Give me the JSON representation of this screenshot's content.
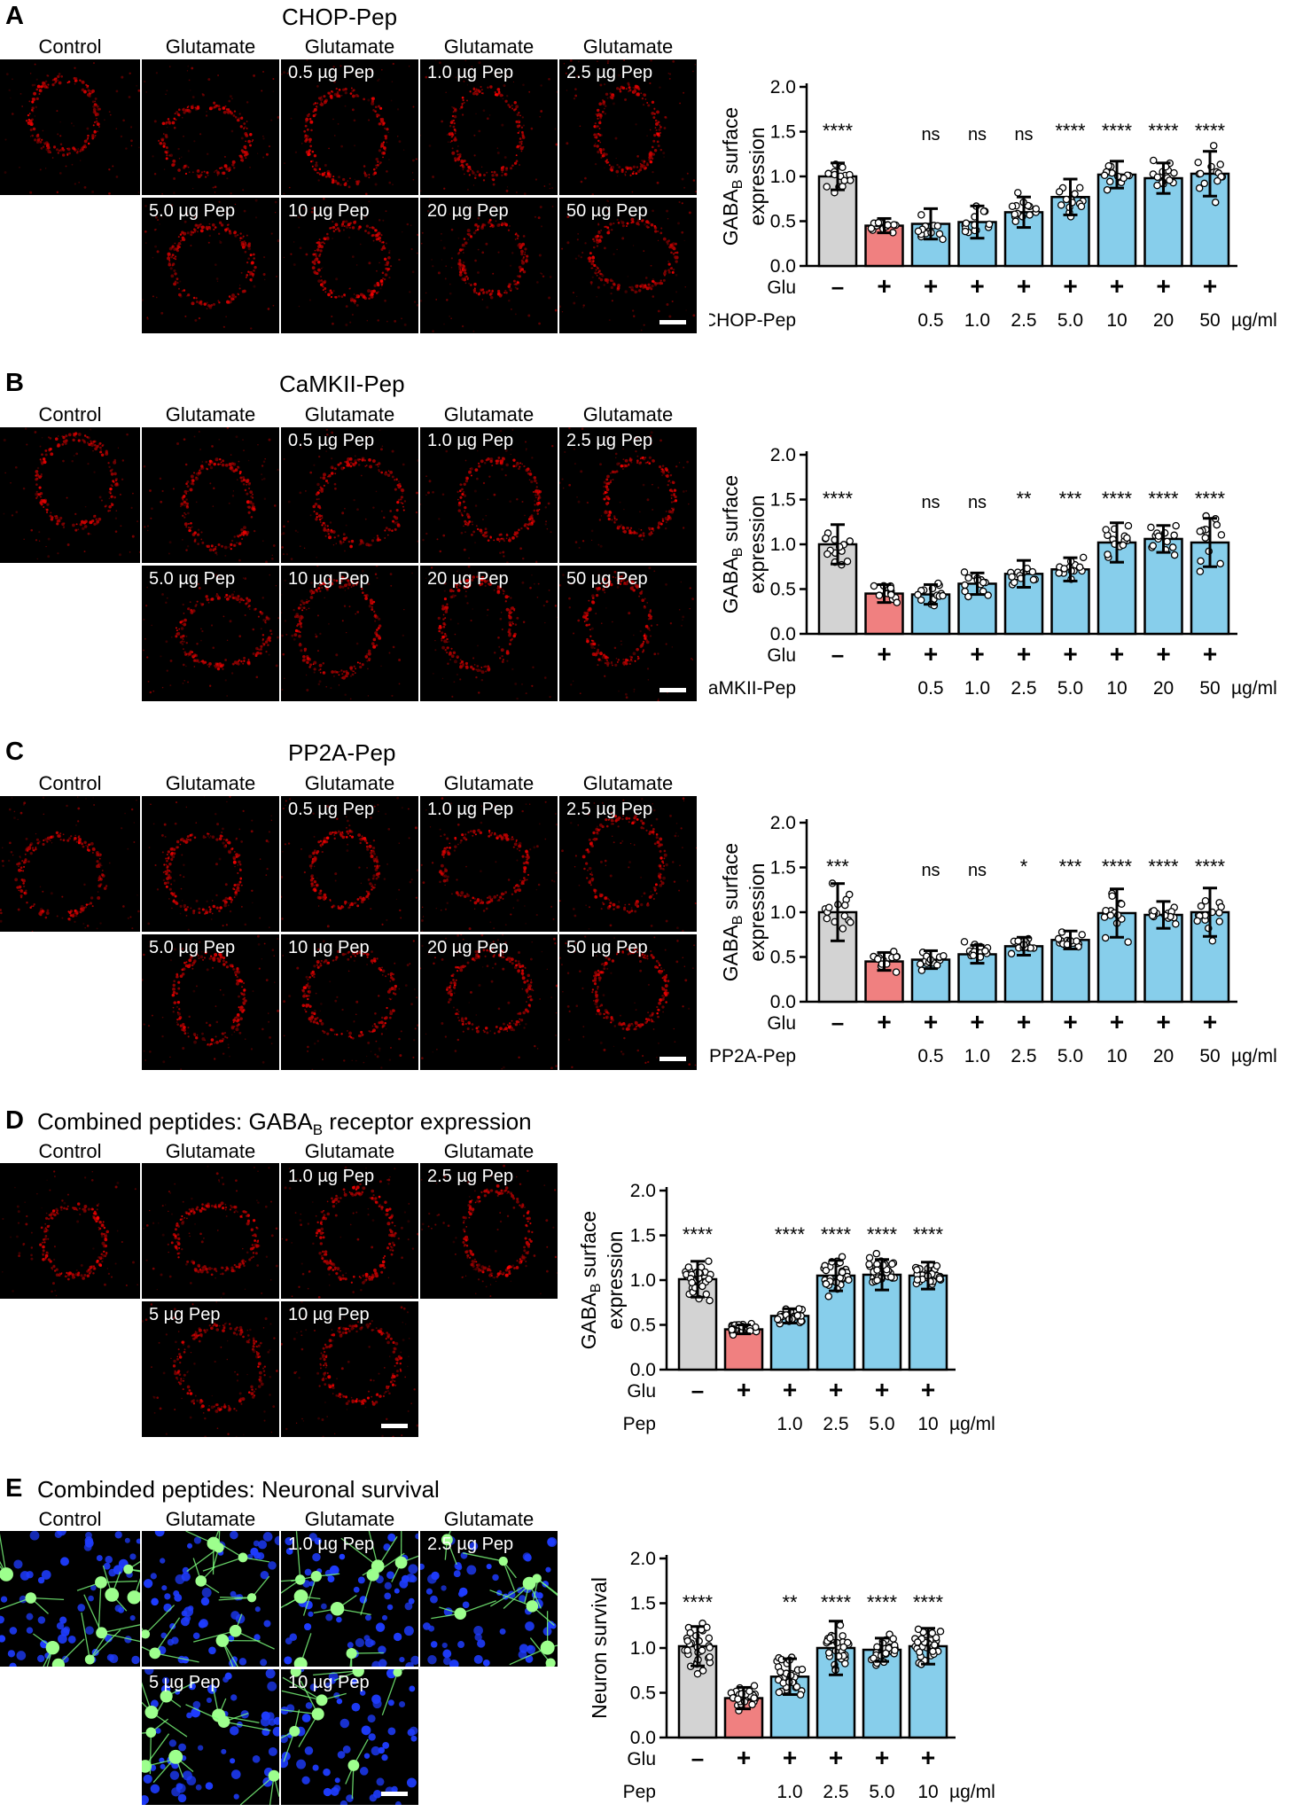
{
  "panels": [
    {
      "letter": "A",
      "title": "CHOP-Pep",
      "chart": {
        "type": "bar",
        "ylabel_line1": "GABABR surface",
        "ylabel_line2": "expression",
        "ylim": [
          0,
          2.0
        ],
        "yticks": [
          "0.0",
          "0.5",
          "1.0",
          "1.5",
          "2.0"
        ],
        "row1_label": "Glu",
        "row2_label": "CHOP-Pep",
        "unit": "µg/ml",
        "glu_signs": [
          "-",
          "+",
          "+",
          "+",
          "+",
          "+",
          "+",
          "+",
          "+"
        ],
        "doses": [
          "",
          "",
          "0.5",
          "1.0",
          "2.5",
          "5.0",
          "10",
          "20",
          "50"
        ],
        "values": [
          1.0,
          0.45,
          0.47,
          0.49,
          0.6,
          0.77,
          1.02,
          0.98,
          1.03
        ],
        "errors": [
          0.15,
          0.08,
          0.17,
          0.18,
          0.17,
          0.2,
          0.15,
          0.17,
          0.25
        ],
        "significance": [
          "****",
          "",
          "ns",
          "ns",
          "ns",
          "****",
          "****",
          "****",
          "****"
        ],
        "bar_colors": [
          "#d3d3d3",
          "#f08080",
          "#87ceeb",
          "#87ceeb",
          "#87ceeb",
          "#87ceeb",
          "#87ceeb",
          "#87ceeb",
          "#87ceeb"
        ]
      },
      "images": {
        "top": [
          {
            "header": "Control",
            "label": ""
          },
          {
            "header": "Glutamate",
            "label": ""
          },
          {
            "header": "Glutamate",
            "label": "0.5 µg Pep"
          },
          {
            "header": "Glutamate",
            "label": "1.0 µg Pep"
          },
          {
            "header": "Glutamate",
            "label": "2.5 µg Pep"
          }
        ],
        "bottom": [
          {
            "label": "5.0 µg Pep"
          },
          {
            "label": "10 µg Pep"
          },
          {
            "label": "20 µg Pep"
          },
          {
            "label": "50 µg Pep"
          }
        ]
      }
    },
    {
      "letter": "B",
      "title": "CaMKII-Pep",
      "chart": {
        "type": "bar",
        "ylabel_line1": "GABABR surface",
        "ylabel_line2": "expression",
        "ylim": [
          0,
          2.0
        ],
        "yticks": [
          "0.0",
          "0.5",
          "1.0",
          "1.5",
          "2.0"
        ],
        "row1_label": "Glu",
        "row2_label": "CaMKII-Pep",
        "unit": "µg/ml",
        "glu_signs": [
          "-",
          "+",
          "+",
          "+",
          "+",
          "+",
          "+",
          "+",
          "+"
        ],
        "doses": [
          "",
          "",
          "0.5",
          "1.0",
          "2.5",
          "5.0",
          "10",
          "20",
          "50"
        ],
        "values": [
          1.0,
          0.45,
          0.44,
          0.56,
          0.67,
          0.72,
          1.02,
          1.06,
          1.02
        ],
        "errors": [
          0.22,
          0.1,
          0.11,
          0.12,
          0.15,
          0.13,
          0.22,
          0.15,
          0.27
        ],
        "significance": [
          "****",
          "",
          "ns",
          "ns",
          "**",
          "***",
          "****",
          "****",
          "****"
        ],
        "bar_colors": [
          "#d3d3d3",
          "#f08080",
          "#87ceeb",
          "#87ceeb",
          "#87ceeb",
          "#87ceeb",
          "#87ceeb",
          "#87ceeb",
          "#87ceeb"
        ]
      },
      "images": {
        "top": [
          {
            "header": "Control",
            "label": ""
          },
          {
            "header": "Glutamate",
            "label": ""
          },
          {
            "header": "Glutamate",
            "label": "0.5 µg Pep"
          },
          {
            "header": "Glutamate",
            "label": "1.0 µg Pep"
          },
          {
            "header": "Glutamate",
            "label": "2.5 µg Pep"
          }
        ],
        "bottom": [
          {
            "label": "5.0 µg Pep"
          },
          {
            "label": "10 µg Pep"
          },
          {
            "label": "20 µg Pep"
          },
          {
            "label": "50 µg Pep"
          }
        ]
      }
    },
    {
      "letter": "C",
      "title": "PP2A-Pep",
      "chart": {
        "type": "bar",
        "ylabel_line1": "GABABR surface",
        "ylabel_line2": "expression",
        "ylim": [
          0,
          2.0
        ],
        "yticks": [
          "0.0",
          "0.5",
          "1.0",
          "1.5",
          "2.0"
        ],
        "row1_label": "Glu",
        "row2_label": "PP2A-Pep",
        "unit": "µg/ml",
        "glu_signs": [
          "-",
          "+",
          "+",
          "+",
          "+",
          "+",
          "+",
          "+",
          "+"
        ],
        "doses": [
          "",
          "",
          "0.5",
          "1.0",
          "2.5",
          "5.0",
          "10",
          "20",
          "50"
        ],
        "values": [
          1.0,
          0.45,
          0.47,
          0.53,
          0.62,
          0.69,
          0.99,
          0.97,
          1.0
        ],
        "errors": [
          0.32,
          0.1,
          0.1,
          0.1,
          0.1,
          0.1,
          0.27,
          0.15,
          0.27
        ],
        "significance": [
          "***",
          "",
          "ns",
          "ns",
          "*",
          "***",
          "****",
          "****",
          "****"
        ],
        "bar_colors": [
          "#d3d3d3",
          "#f08080",
          "#87ceeb",
          "#87ceeb",
          "#87ceeb",
          "#87ceeb",
          "#87ceeb",
          "#87ceeb",
          "#87ceeb"
        ]
      },
      "images": {
        "top": [
          {
            "header": "Control",
            "label": ""
          },
          {
            "header": "Glutamate",
            "label": ""
          },
          {
            "header": "Glutamate",
            "label": "0.5 µg Pep"
          },
          {
            "header": "Glutamate",
            "label": "1.0 µg Pep"
          },
          {
            "header": "Glutamate",
            "label": "2.5 µg Pep"
          }
        ],
        "bottom": [
          {
            "label": "5.0 µg Pep"
          },
          {
            "label": "10 µg Pep"
          },
          {
            "label": "20 µg Pep"
          },
          {
            "label": "50 µg Pep"
          }
        ]
      }
    },
    {
      "letter": "D",
      "title_main": "Combined peptides: GABA",
      "title_sub": "B",
      "title_rest": " receptor expression",
      "chart": {
        "type": "bar",
        "ylabel_line1": "GABABR surface",
        "ylabel_line2": "expression",
        "ylim": [
          0,
          2.0
        ],
        "yticks": [
          "0.0",
          "0.5",
          "1.0",
          "1.5",
          "2.0"
        ],
        "row1_label": "Glu",
        "row2_label": "Pep",
        "unit": "µg/ml",
        "glu_signs": [
          "-",
          "+",
          "+",
          "+",
          "+",
          "+"
        ],
        "doses": [
          "",
          "",
          "1.0",
          "2.5",
          "5.0",
          "10"
        ],
        "values": [
          1.01,
          0.45,
          0.6,
          1.05,
          1.06,
          1.05
        ],
        "errors": [
          0.2,
          0.05,
          0.08,
          0.17,
          0.17,
          0.15
        ],
        "significance": [
          "****",
          "",
          "****",
          "****",
          "****",
          "****"
        ],
        "bar_colors": [
          "#d3d3d3",
          "#f08080",
          "#87ceeb",
          "#87ceeb",
          "#87ceeb",
          "#87ceeb"
        ]
      },
      "images": {
        "top": [
          {
            "header": "Control",
            "label": ""
          },
          {
            "header": "Glutamate",
            "label": ""
          },
          {
            "header": "Glutamate",
            "label": "1.0 µg Pep"
          },
          {
            "header": "Glutamate",
            "label": "2.5 µg Pep"
          }
        ],
        "bottom": [
          {
            "label": "5 µg Pep"
          },
          {
            "label": "10 µg Pep"
          }
        ]
      }
    },
    {
      "letter": "E",
      "title": "Combinded peptides: Neuronal survival",
      "chart": {
        "type": "bar",
        "ylabel_line1": "Neuron survival",
        "ylabel_line2": "",
        "ylim": [
          0,
          2.0
        ],
        "yticks": [
          "0.0",
          "0.5",
          "1.0",
          "1.5",
          "2.0"
        ],
        "row1_label": "Glu",
        "row2_label": "Pep",
        "unit": "µg/ml",
        "glu_signs": [
          "-",
          "+",
          "+",
          "+",
          "+",
          "+"
        ],
        "doses": [
          "",
          "",
          "1.0",
          "2.5",
          "5.0",
          "10"
        ],
        "values": [
          1.02,
          0.44,
          0.68,
          1.0,
          0.98,
          1.02
        ],
        "errors": [
          0.22,
          0.12,
          0.2,
          0.3,
          0.13,
          0.2
        ],
        "significance": [
          "****",
          "",
          "**",
          "****",
          "****",
          "****"
        ],
        "bar_colors": [
          "#d3d3d3",
          "#f08080",
          "#87ceeb",
          "#87ceeb",
          "#87ceeb",
          "#87ceeb"
        ]
      },
      "images": {
        "top": [
          {
            "header": "Control",
            "label": ""
          },
          {
            "header": "Glutamate",
            "label": ""
          },
          {
            "header": "Glutamate",
            "label": "1.0 µg Pep"
          },
          {
            "header": "Glutamate",
            "label": "2.5 µg Pep"
          }
        ],
        "bottom": [
          {
            "label": "5 µg Pep"
          },
          {
            "label": "10 µg Pep"
          }
        ]
      }
    }
  ]
}
